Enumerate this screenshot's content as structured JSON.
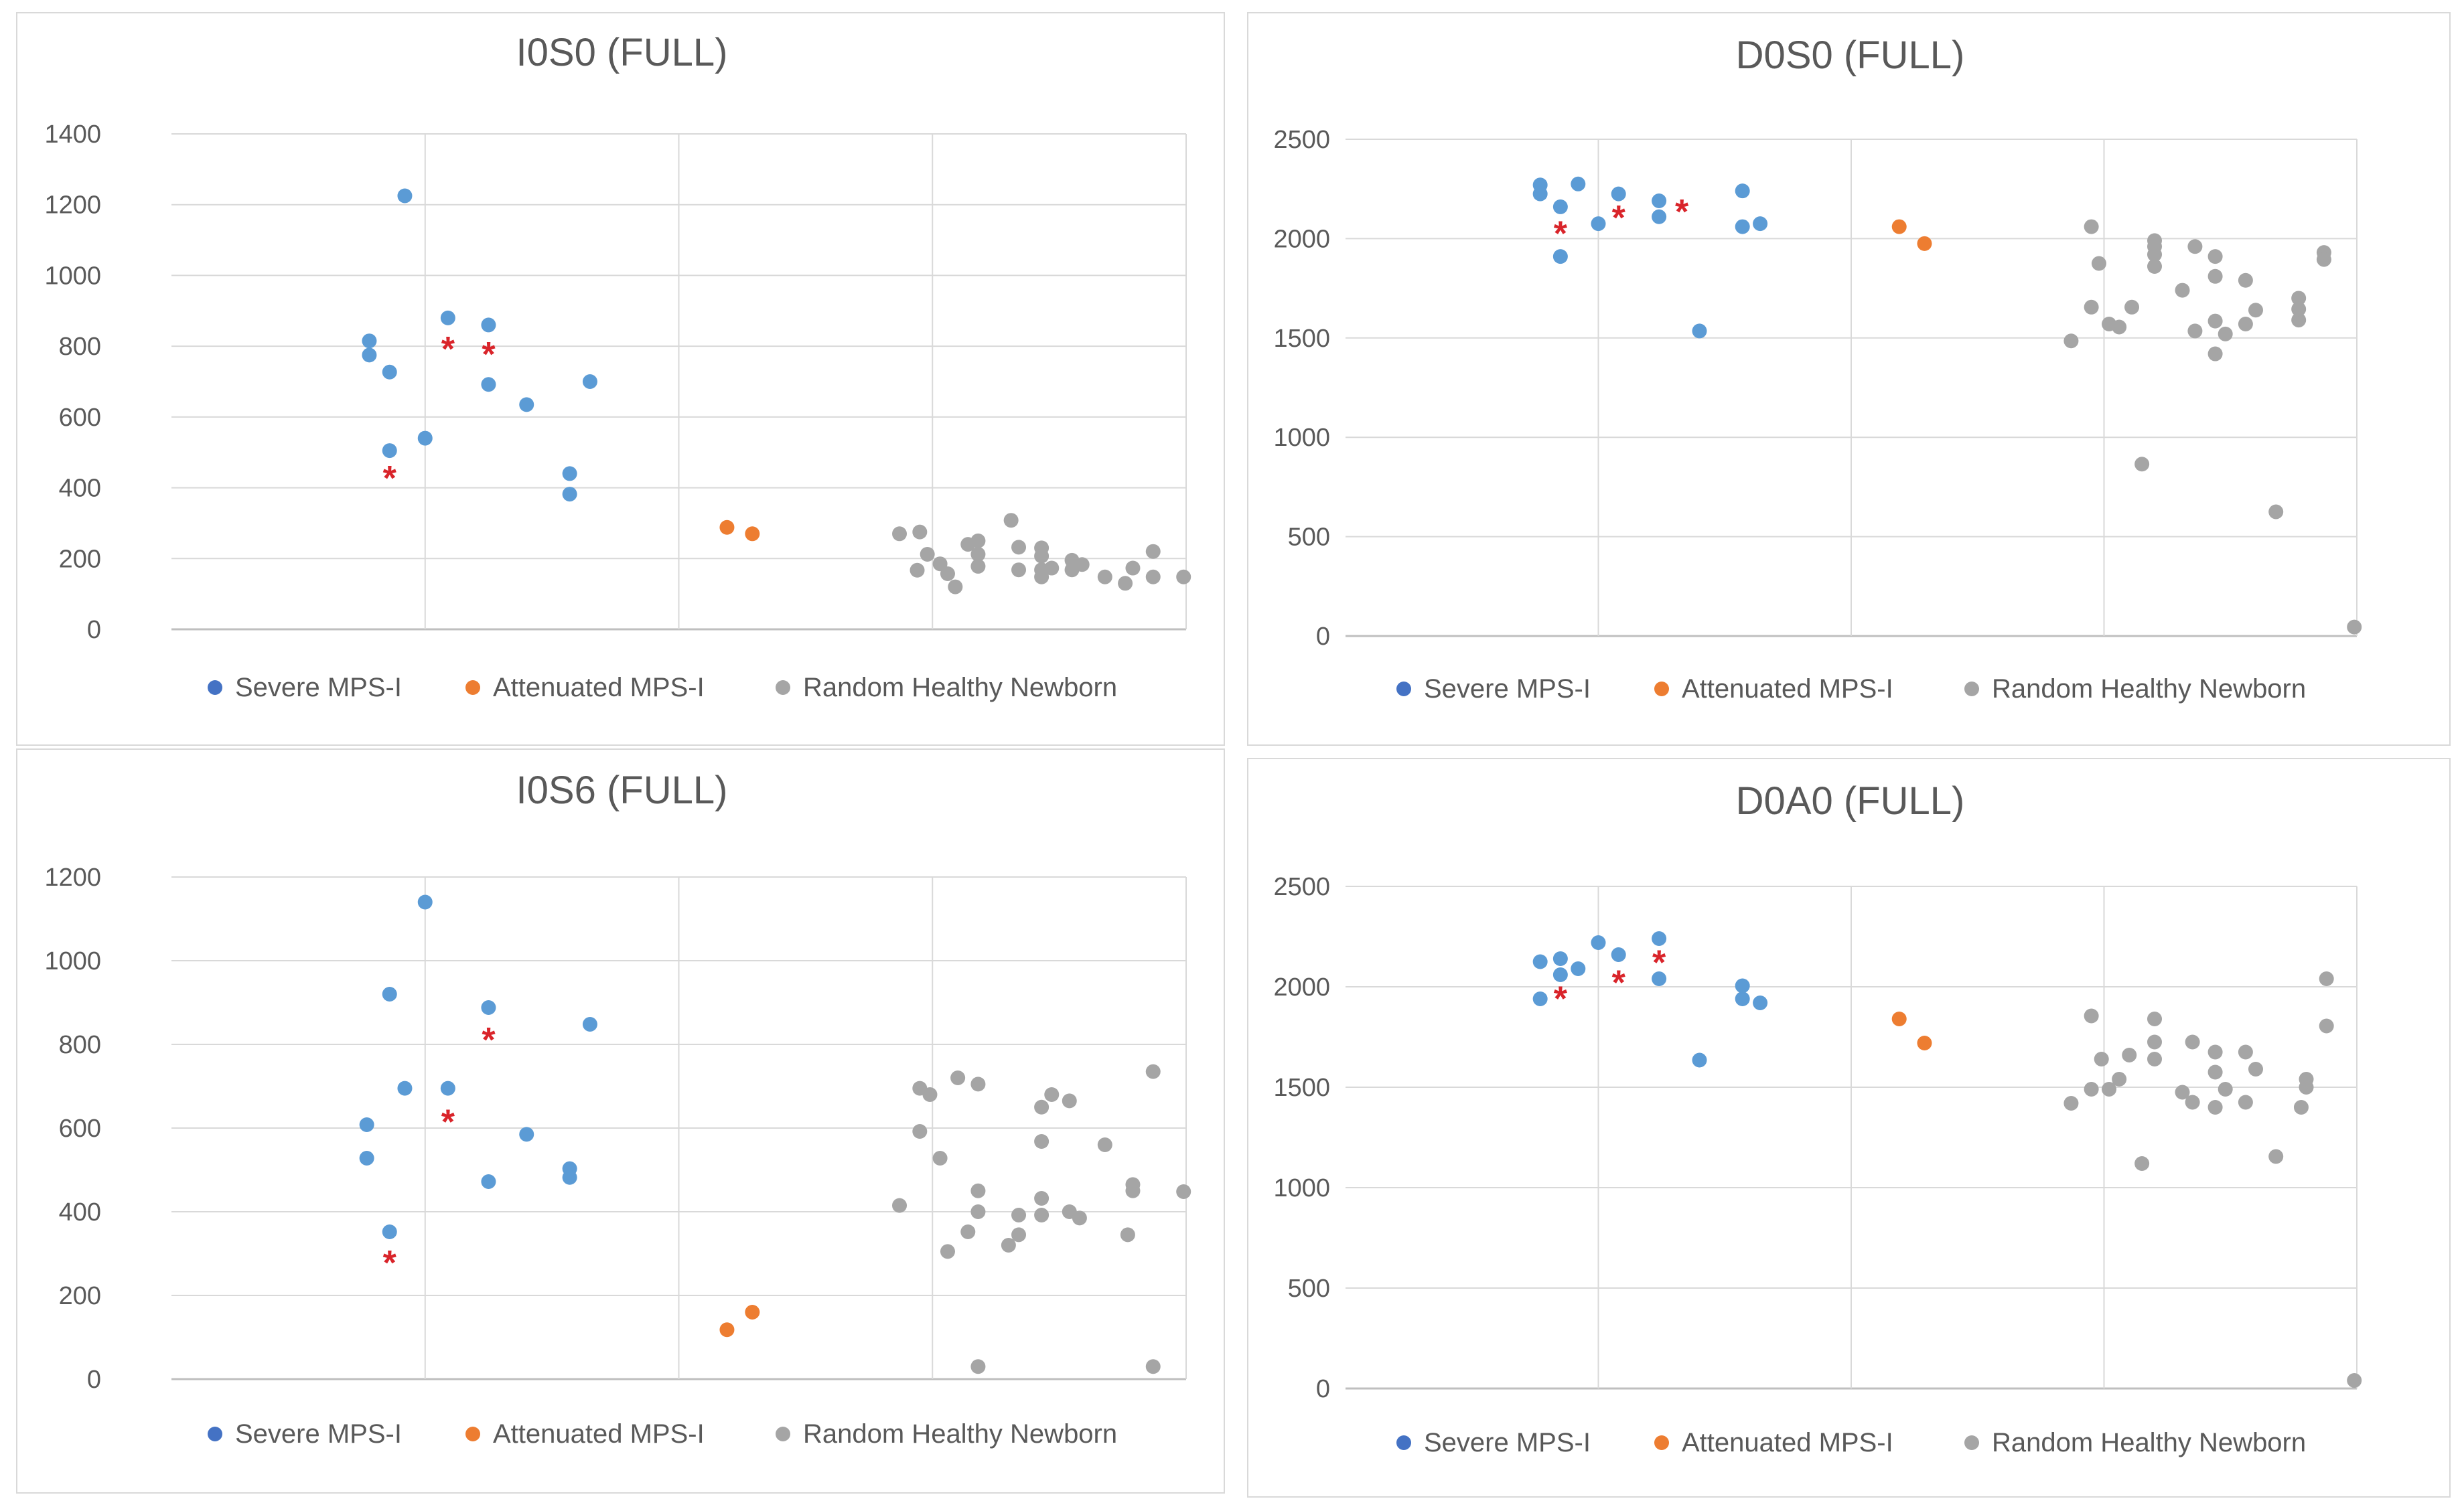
{
  "chart_data": [
    {
      "type": "scatter",
      "title": "I0S0 (FULL)",
      "ylim": [
        0,
        1400
      ],
      "yticks": [
        0,
        200,
        400,
        600,
        800,
        1000,
        1200,
        1400
      ],
      "xlim": [
        0,
        4
      ],
      "xgrid": [
        1,
        2,
        3
      ],
      "grid": true,
      "legend_position": "bottom",
      "colors": {
        "Severe MPS-I": "#5b9bd5",
        "Attenuated MPS-I": "#ed7d31",
        "Random Healthy Newborn": "#a5a5a5",
        "marker": "#d9242a"
      },
      "legend": [
        "Severe MPS-I",
        "Attenuated MPS-I",
        "Random Healthy Newborn"
      ],
      "marker_symbol": "*",
      "series": [
        {
          "name": "Severe MPS-I",
          "points": [
            [
              0.92,
              1225
            ],
            [
              0.78,
              815
            ],
            [
              0.78,
              775
            ],
            [
              0.86,
              727
            ],
            [
              0.86,
              505
            ],
            [
              1.0,
              540
            ],
            [
              1.09,
              880
            ],
            [
              1.25,
              860
            ],
            [
              1.25,
              692
            ],
            [
              1.4,
              635
            ],
            [
              1.57,
              440
            ],
            [
              1.57,
              382
            ],
            [
              1.65,
              700
            ]
          ]
        },
        {
          "name": "Attenuated MPS-I",
          "points": [
            [
              2.19,
              288
            ],
            [
              2.29,
              270
            ]
          ]
        },
        {
          "name": "Random Healthy Newborn",
          "points": [
            [
              2.87,
              270
            ],
            [
              2.95,
              275
            ],
            [
              2.98,
              212
            ],
            [
              2.94,
              167
            ],
            [
              3.03,
              185
            ],
            [
              3.06,
              157
            ],
            [
              3.09,
              120
            ],
            [
              3.14,
              240
            ],
            [
              3.18,
              250
            ],
            [
              3.18,
              212
            ],
            [
              3.18,
              178
            ],
            [
              3.31,
              308
            ],
            [
              3.34,
              232
            ],
            [
              3.34,
              168
            ],
            [
              3.43,
              230
            ],
            [
              3.43,
              207
            ],
            [
              3.43,
              168
            ],
            [
              3.43,
              148
            ],
            [
              3.47,
              173
            ],
            [
              3.55,
              195
            ],
            [
              3.55,
              168
            ],
            [
              3.59,
              183
            ],
            [
              3.68,
              148
            ],
            [
              3.76,
              130
            ],
            [
              3.79,
              173
            ],
            [
              3.87,
              220
            ],
            [
              3.87,
              148
            ],
            [
              3.99,
              148
            ]
          ]
        }
      ],
      "markers": [
        [
          1.09,
          800
        ],
        [
          1.25,
          785
        ],
        [
          0.86,
          435
        ]
      ]
    },
    {
      "type": "scatter",
      "title": "D0S0 (FULL)",
      "ylim": [
        0,
        2500
      ],
      "yticks": [
        0,
        500,
        1000,
        1500,
        2000,
        2500
      ],
      "xlim": [
        0,
        4
      ],
      "xgrid": [
        1,
        2,
        3
      ],
      "grid": true,
      "legend_position": "bottom",
      "colors": {
        "Severe MPS-I": "#5b9bd5",
        "Attenuated MPS-I": "#ed7d31",
        "Random Healthy Newborn": "#a5a5a5",
        "marker": "#d9242a"
      },
      "legend": [
        "Severe MPS-I",
        "Attenuated MPS-I",
        "Random Healthy Newborn"
      ],
      "marker_symbol": "*",
      "series": [
        {
          "name": "Severe MPS-I",
          "points": [
            [
              0.77,
              2270
            ],
            [
              0.77,
              2225
            ],
            [
              0.85,
              2160
            ],
            [
              0.85,
              1910
            ],
            [
              0.92,
              2275
            ],
            [
              1.0,
              2075
            ],
            [
              1.08,
              2225
            ],
            [
              1.24,
              2190
            ],
            [
              1.24,
              2110
            ],
            [
              1.4,
              1535
            ],
            [
              1.57,
              2240
            ],
            [
              1.57,
              2060
            ],
            [
              1.64,
              2075
            ]
          ]
        },
        {
          "name": "Attenuated MPS-I",
          "points": [
            [
              2.19,
              2060
            ],
            [
              2.29,
              1975
            ]
          ]
        },
        {
          "name": "Random Healthy Newborn",
          "points": [
            [
              2.87,
              1485
            ],
            [
              2.95,
              2060
            ],
            [
              2.95,
              1655
            ],
            [
              2.98,
              1875
            ],
            [
              3.02,
              1570
            ],
            [
              3.06,
              1555
            ],
            [
              3.11,
              1655
            ],
            [
              3.15,
              865
            ],
            [
              3.2,
              1990
            ],
            [
              3.2,
              1960
            ],
            [
              3.2,
              1920
            ],
            [
              3.2,
              1860
            ],
            [
              3.31,
              1740
            ],
            [
              3.36,
              1960
            ],
            [
              3.36,
              1535
            ],
            [
              3.44,
              1910
            ],
            [
              3.44,
              1810
            ],
            [
              3.44,
              1585
            ],
            [
              3.44,
              1420
            ],
            [
              3.48,
              1520
            ],
            [
              3.56,
              1790
            ],
            [
              3.56,
              1570
            ],
            [
              3.6,
              1640
            ],
            [
              3.68,
              625
            ],
            [
              3.77,
              1590
            ],
            [
              3.77,
              1700
            ],
            [
              3.77,
              1645
            ],
            [
              3.87,
              1930
            ],
            [
              3.87,
              1895
            ],
            [
              3.99,
              45
            ]
          ]
        }
      ],
      "markers": [
        [
          0.85,
          2040
        ],
        [
          1.08,
          2120
        ],
        [
          1.33,
          2150
        ]
      ]
    },
    {
      "type": "scatter",
      "title": "I0S6 (FULL)",
      "ylim": [
        0,
        1200
      ],
      "yticks": [
        0,
        200,
        400,
        600,
        800,
        1000,
        1200
      ],
      "xlim": [
        0,
        4
      ],
      "xgrid": [
        1,
        2,
        3
      ],
      "grid": true,
      "legend_position": "bottom",
      "colors": {
        "Severe MPS-I": "#5b9bd5",
        "Attenuated MPS-I": "#ed7d31",
        "Random Healthy Newborn": "#a5a5a5",
        "marker": "#d9242a"
      },
      "legend": [
        "Severe MPS-I",
        "Attenuated MPS-I",
        "Random Healthy Newborn"
      ],
      "marker_symbol": "*",
      "series": [
        {
          "name": "Severe MPS-I",
          "points": [
            [
              1.0,
              1140
            ],
            [
              0.86,
              920
            ],
            [
              0.92,
              695
            ],
            [
              0.77,
              608
            ],
            [
              0.77,
              528
            ],
            [
              0.86,
              352
            ],
            [
              1.09,
              695
            ],
            [
              1.25,
              888
            ],
            [
              1.25,
              472
            ],
            [
              1.4,
              585
            ],
            [
              1.57,
              503
            ],
            [
              1.57,
              482
            ],
            [
              1.65,
              848
            ]
          ]
        },
        {
          "name": "Attenuated MPS-I",
          "points": [
            [
              2.19,
              118
            ],
            [
              2.29,
              160
            ]
          ]
        },
        {
          "name": "Random Healthy Newborn",
          "points": [
            [
              2.87,
              415
            ],
            [
              2.95,
              695
            ],
            [
              2.95,
              592
            ],
            [
              2.99,
              680
            ],
            [
              3.03,
              528
            ],
            [
              3.06,
              305
            ],
            [
              3.1,
              720
            ],
            [
              3.14,
              352
            ],
            [
              3.18,
              705
            ],
            [
              3.18,
              450
            ],
            [
              3.18,
              400
            ],
            [
              3.18,
              30
            ],
            [
              3.3,
              320
            ],
            [
              3.34,
              392
            ],
            [
              3.34,
              345
            ],
            [
              3.43,
              650
            ],
            [
              3.43,
              568
            ],
            [
              3.43,
              432
            ],
            [
              3.43,
              392
            ],
            [
              3.47,
              680
            ],
            [
              3.54,
              665
            ],
            [
              3.54,
              400
            ],
            [
              3.58,
              385
            ],
            [
              3.68,
              560
            ],
            [
              3.77,
              345
            ],
            [
              3.79,
              465
            ],
            [
              3.79,
              450
            ],
            [
              3.87,
              735
            ],
            [
              3.87,
              30
            ],
            [
              3.99,
              448
            ]
          ]
        }
      ],
      "markers": [
        [
          1.25,
          818
        ],
        [
          1.09,
          622
        ],
        [
          0.86,
          285
        ]
      ]
    },
    {
      "type": "scatter",
      "title": "D0A0 (FULL)",
      "ylim": [
        0,
        2500
      ],
      "yticks": [
        0,
        500,
        1000,
        1500,
        2000,
        2500
      ],
      "xlim": [
        0,
        4
      ],
      "xgrid": [
        1,
        2,
        3
      ],
      "grid": true,
      "legend_position": "bottom",
      "colors": {
        "Severe MPS-I": "#5b9bd5",
        "Attenuated MPS-I": "#ed7d31",
        "Random Healthy Newborn": "#a5a5a5",
        "marker": "#d9242a"
      },
      "legend": [
        "Severe MPS-I",
        "Attenuated MPS-I",
        "Random Healthy Newborn"
      ],
      "marker_symbol": "*",
      "series": [
        {
          "name": "Severe MPS-I",
          "points": [
            [
              0.77,
              2125
            ],
            [
              0.77,
              1940
            ],
            [
              0.85,
              2140
            ],
            [
              0.85,
              2060
            ],
            [
              0.92,
              2090
            ],
            [
              1.0,
              2220
            ],
            [
              1.08,
              2160
            ],
            [
              1.24,
              2240
            ],
            [
              1.24,
              2040
            ],
            [
              1.4,
              1635
            ],
            [
              1.57,
              2005
            ],
            [
              1.57,
              1940
            ],
            [
              1.64,
              1920
            ]
          ]
        },
        {
          "name": "Attenuated MPS-I",
          "points": [
            [
              2.19,
              1840
            ],
            [
              2.29,
              1720
            ]
          ]
        },
        {
          "name": "Random Healthy Newborn",
          "points": [
            [
              2.87,
              1420
            ],
            [
              2.95,
              1855
            ],
            [
              2.95,
              1490
            ],
            [
              2.99,
              1640
            ],
            [
              3.02,
              1490
            ],
            [
              3.06,
              1540
            ],
            [
              3.1,
              1660
            ],
            [
              3.15,
              1120
            ],
            [
              3.2,
              1840
            ],
            [
              3.2,
              1725
            ],
            [
              3.2,
              1640
            ],
            [
              3.31,
              1475
            ],
            [
              3.35,
              1725
            ],
            [
              3.35,
              1425
            ],
            [
              3.44,
              1675
            ],
            [
              3.44,
              1575
            ],
            [
              3.44,
              1400
            ],
            [
              3.48,
              1490
            ],
            [
              3.56,
              1675
            ],
            [
              3.56,
              1425
            ],
            [
              3.6,
              1590
            ],
            [
              3.68,
              1155
            ],
            [
              3.78,
              1400
            ],
            [
              3.8,
              1540
            ],
            [
              3.8,
              1500
            ],
            [
              3.88,
              2040
            ],
            [
              3.88,
              1805
            ],
            [
              3.99,
              40
            ]
          ]
        }
      ],
      "markers": [
        [
          0.85,
          1955
        ],
        [
          1.08,
          2035
        ],
        [
          1.24,
          2135
        ]
      ]
    }
  ]
}
